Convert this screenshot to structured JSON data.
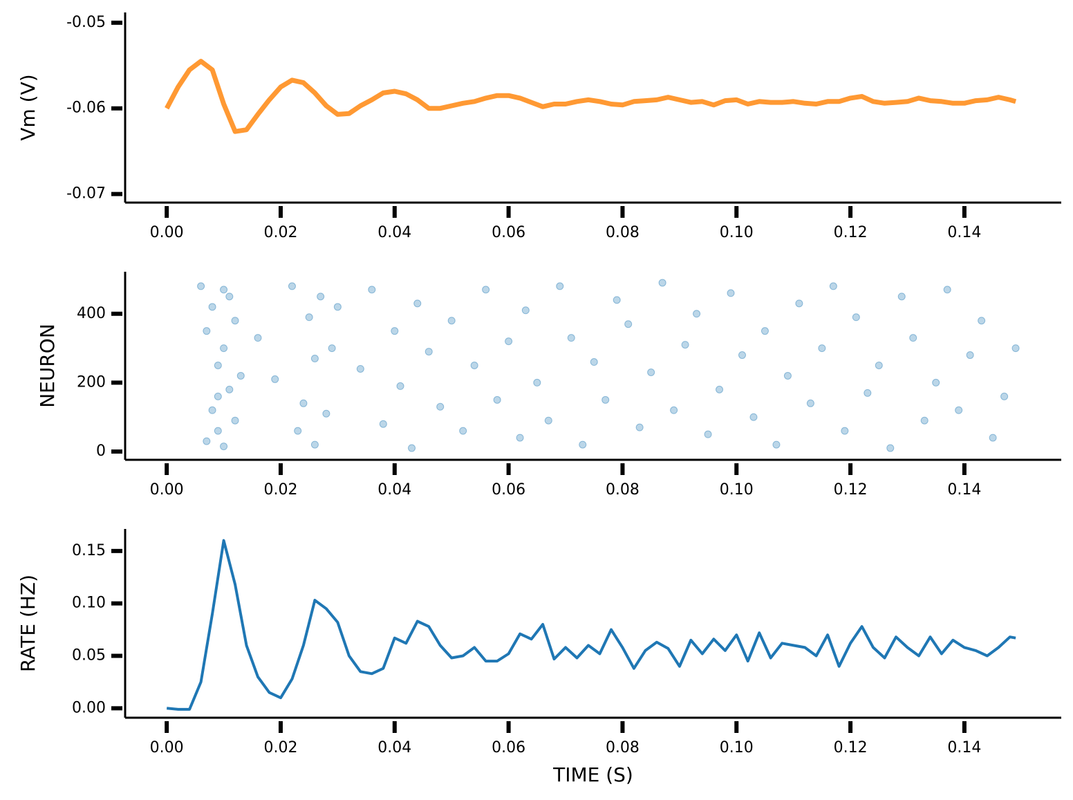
{
  "chart_data": [
    {
      "type": "line",
      "ylabel": "Vm (V)",
      "color": "#ff9933",
      "x": [
        0,
        0.002,
        0.004,
        0.006,
        0.008,
        0.01,
        0.012,
        0.014,
        0.016,
        0.018,
        0.02,
        0.022,
        0.024,
        0.026,
        0.028,
        0.03,
        0.032,
        0.034,
        0.036,
        0.038,
        0.04,
        0.042,
        0.044,
        0.046,
        0.048,
        0.05,
        0.052,
        0.054,
        0.056,
        0.058,
        0.06,
        0.062,
        0.064,
        0.066,
        0.068,
        0.07,
        0.072,
        0.074,
        0.076,
        0.078,
        0.08,
        0.082,
        0.084,
        0.086,
        0.088,
        0.09,
        0.092,
        0.094,
        0.096,
        0.098,
        0.1,
        0.102,
        0.104,
        0.106,
        0.108,
        0.11,
        0.112,
        0.114,
        0.116,
        0.118,
        0.12,
        0.122,
        0.124,
        0.126,
        0.128,
        0.13,
        0.132,
        0.134,
        0.136,
        0.138,
        0.14,
        0.142,
        0.144,
        0.146,
        0.148,
        0.149
      ],
      "values": [
        -0.06,
        -0.0575,
        -0.0555,
        -0.0545,
        -0.0555,
        -0.0595,
        -0.0627,
        -0.0625,
        -0.0607,
        -0.059,
        -0.0575,
        -0.0567,
        -0.057,
        -0.0582,
        -0.0597,
        -0.0607,
        -0.0606,
        -0.0597,
        -0.059,
        -0.0582,
        -0.058,
        -0.0583,
        -0.059,
        -0.06,
        -0.06,
        -0.0597,
        -0.0594,
        -0.0592,
        -0.0588,
        -0.0585,
        -0.0585,
        -0.0588,
        -0.0593,
        -0.0598,
        -0.0595,
        -0.0595,
        -0.0592,
        -0.059,
        -0.0592,
        -0.0595,
        -0.0596,
        -0.0592,
        -0.0591,
        -0.059,
        -0.0587,
        -0.059,
        -0.0593,
        -0.0592,
        -0.0596,
        -0.0591,
        -0.059,
        -0.0595,
        -0.0592,
        -0.0593,
        -0.0593,
        -0.0592,
        -0.0594,
        -0.0595,
        -0.0592,
        -0.0592,
        -0.0588,
        -0.0586,
        -0.0592,
        -0.0594,
        -0.0593,
        -0.0592,
        -0.0588,
        -0.0591,
        -0.0592,
        -0.0594,
        -0.0594,
        -0.0591,
        -0.059,
        -0.0587,
        -0.059,
        -0.0592
      ],
      "xlim": [
        -0.0073,
        0.157
      ],
      "xticks": [
        {
          "value": 0,
          "label": "0.00"
        },
        0.02,
        0.04,
        0.06,
        0.08,
        {
          "value": 0.1,
          "label": "0.10"
        },
        0.12,
        0.14
      ],
      "ylim": [
        -0.071,
        -0.0488
      ],
      "yticks": [
        -0.07,
        -0.06,
        -0.05
      ]
    },
    {
      "type": "scatter",
      "ylabel": "NEURON",
      "color": "#1f77b4",
      "x": [
        0.006,
        0.007,
        0.008,
        0.008,
        0.009,
        0.009,
        0.01,
        0.01,
        0.011,
        0.011,
        0.012,
        0.012,
        0.013,
        0.007,
        0.009,
        0.01,
        0.016,
        0.019,
        0.022,
        0.023,
        0.024,
        0.025,
        0.026,
        0.026,
        0.027,
        0.028,
        0.029,
        0.03,
        0.034,
        0.036,
        0.038,
        0.04,
        0.041,
        0.043,
        0.044,
        0.046,
        0.048,
        0.05,
        0.052,
        0.054,
        0.056,
        0.058,
        0.06,
        0.062,
        0.063,
        0.065,
        0.067,
        0.069,
        0.071,
        0.073,
        0.075,
        0.077,
        0.079,
        0.081,
        0.083,
        0.085,
        0.087,
        0.089,
        0.091,
        0.093,
        0.095,
        0.097,
        0.099,
        0.101,
        0.103,
        0.105,
        0.107,
        0.109,
        0.111,
        0.113,
        0.115,
        0.117,
        0.119,
        0.121,
        0.123,
        0.125,
        0.127,
        0.129,
        0.131,
        0.133,
        0.135,
        0.137,
        0.139,
        0.141,
        0.143,
        0.145,
        0.147,
        0.149
      ],
      "values": [
        480,
        350,
        120,
        420,
        60,
        250,
        300,
        15,
        450,
        180,
        380,
        90,
        220,
        30,
        160,
        470,
        330,
        210,
        480,
        60,
        140,
        390,
        270,
        20,
        450,
        110,
        300,
        420,
        240,
        470,
        80,
        350,
        190,
        10,
        430,
        290,
        130,
        380,
        60,
        250,
        470,
        150,
        320,
        40,
        410,
        200,
        90,
        480,
        330,
        20,
        260,
        150,
        440,
        370,
        70,
        230,
        490,
        120,
        310,
        400,
        50,
        180,
        460,
        280,
        100,
        350,
        20,
        220,
        430,
        140,
        300,
        480,
        60,
        390,
        170,
        250,
        10,
        450,
        330,
        90,
        200,
        470,
        120,
        280,
        380,
        40,
        160,
        300
      ],
      "xlim": [
        -0.0073,
        0.157
      ],
      "xticks": [
        {
          "value": 0,
          "label": "0.00"
        },
        0.02,
        0.04,
        0.06,
        0.08,
        {
          "value": 0.1,
          "label": "0.10"
        },
        0.12,
        0.14
      ],
      "ylim": [
        -24,
        522
      ],
      "yticks": [
        0,
        200,
        400
      ]
    },
    {
      "type": "line",
      "ylabel": "RATE (HZ)",
      "xlabel": "TIME (S)",
      "color": "#1f77b4",
      "x": [
        0,
        0.002,
        0.004,
        0.006,
        0.008,
        0.01,
        0.012,
        0.014,
        0.016,
        0.018,
        0.02,
        0.022,
        0.024,
        0.026,
        0.028,
        0.03,
        0.032,
        0.034,
        0.036,
        0.038,
        0.04,
        0.042,
        0.044,
        0.046,
        0.048,
        0.05,
        0.052,
        0.054,
        0.056,
        0.058,
        0.06,
        0.062,
        0.064,
        0.066,
        0.068,
        0.07,
        0.072,
        0.074,
        0.076,
        0.078,
        0.08,
        0.082,
        0.084,
        0.086,
        0.088,
        0.09,
        0.092,
        0.094,
        0.096,
        0.098,
        0.1,
        0.102,
        0.104,
        0.106,
        0.108,
        0.11,
        0.112,
        0.114,
        0.116,
        0.118,
        0.12,
        0.122,
        0.124,
        0.126,
        0.128,
        0.13,
        0.132,
        0.134,
        0.136,
        0.138,
        0.14,
        0.142,
        0.144,
        0.146,
        0.148,
        0.149
      ],
      "values": [
        0,
        -0.001,
        -0.001,
        0.025,
        0.09,
        0.16,
        0.118,
        0.06,
        0.03,
        0.015,
        0.01,
        0.028,
        0.06,
        0.103,
        0.095,
        0.082,
        0.05,
        0.035,
        0.033,
        0.038,
        0.067,
        0.062,
        0.083,
        0.078,
        0.06,
        0.048,
        0.05,
        0.058,
        0.045,
        0.045,
        0.052,
        0.071,
        0.066,
        0.08,
        0.047,
        0.058,
        0.048,
        0.06,
        0.052,
        0.075,
        0.058,
        0.038,
        0.055,
        0.063,
        0.057,
        0.04,
        0.065,
        0.052,
        0.066,
        0.055,
        0.07,
        0.045,
        0.072,
        0.048,
        0.062,
        0.06,
        0.058,
        0.05,
        0.07,
        0.04,
        0.062,
        0.078,
        0.058,
        0.048,
        0.068,
        0.058,
        0.05,
        0.068,
        0.052,
        0.065,
        0.058,
        0.055,
        0.05,
        0.058,
        0.068,
        0.067
      ],
      "xlim": [
        -0.0073,
        0.157
      ],
      "xticks": [
        {
          "value": 0,
          "label": "0.00"
        },
        0.02,
        0.04,
        0.06,
        0.08,
        {
          "value": 0.1,
          "label": "0.10"
        },
        0.12,
        0.14
      ],
      "ylim": [
        -0.009,
        0.171
      ],
      "yticks": [
        {
          "value": 0,
          "label": "0.00"
        },
        0.05,
        {
          "value": 0.1,
          "label": "0.10"
        },
        0.15
      ]
    }
  ]
}
